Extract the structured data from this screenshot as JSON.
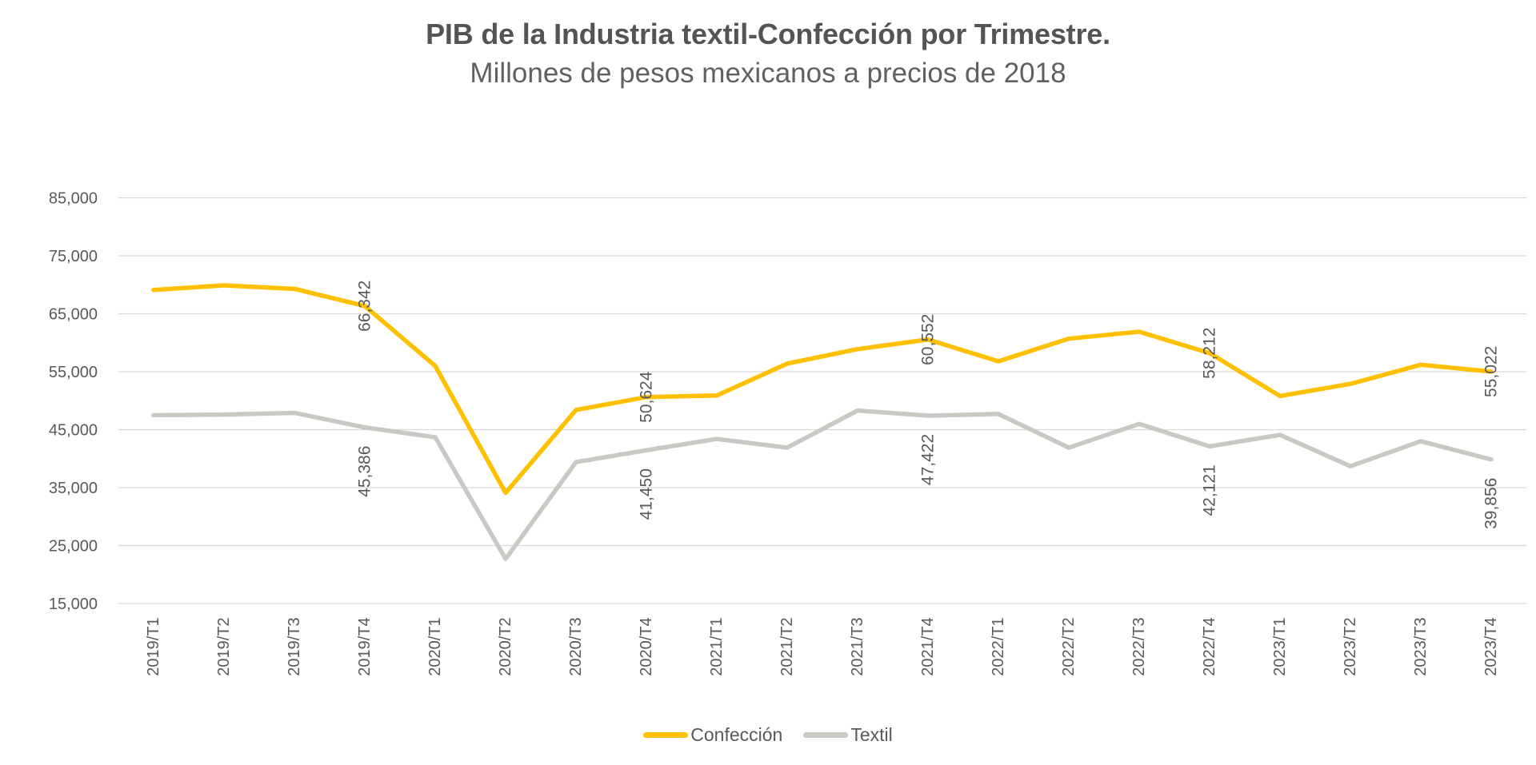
{
  "title": "PIB de la Industria textil-Confección por Trimestre.",
  "subtitle": "Millones de pesos mexicanos a precios de 2018",
  "colors": {
    "confeccion": "#FFC000",
    "textil": "#C9C8C3",
    "grid": "#D9D9D9",
    "axis_text": "#595959",
    "title_text": "#545454",
    "subtitle_text": "#606060",
    "background": "#FFFFFF"
  },
  "legend": {
    "items": [
      {
        "label": "Confección",
        "color": "#FFC000"
      },
      {
        "label": "Textil",
        "color": "#C9C8C3"
      }
    ]
  },
  "y_axis": {
    "tick_labels": [
      "85,000",
      "75,000",
      "65,000",
      "55,000",
      "45,000",
      "35,000",
      "25,000",
      "15,000"
    ],
    "min": 15000,
    "max": 85000,
    "step": 10000
  },
  "chart_data": {
    "type": "line",
    "title": "PIB de la Industria textil-Confección por Trimestre.",
    "subtitle": "Millones de pesos mexicanos a precios de 2018",
    "categories": [
      "2019/T1",
      "2019/T2",
      "2019/T3",
      "2019/T4",
      "2020/T1",
      "2020/T2",
      "2020/T3",
      "2020/T4",
      "2021/T1",
      "2021/T2",
      "2021/T3",
      "2021/T4",
      "2022/T1",
      "2022/T2",
      "2022/T3",
      "2022/T4",
      "2023/T1",
      "2023/T2",
      "2023/T3",
      "2023/T4"
    ],
    "ylim": [
      15000,
      85000
    ],
    "grid": true,
    "legend_position": "bottom",
    "x_tick_rotation_deg": -90,
    "data_label_rotation_deg": -90,
    "series": [
      {
        "name": "Confección",
        "color": "#FFC000",
        "values": [
          69100,
          69900,
          69300,
          66342,
          56000,
          34100,
          48400,
          50624,
          50900,
          56400,
          58900,
          60552,
          56800,
          60700,
          61900,
          58212,
          50800,
          52900,
          56200,
          55022
        ],
        "point_labels": [
          {
            "index": 3,
            "text": "66,342"
          },
          {
            "index": 7,
            "text": "50,624"
          },
          {
            "index": 11,
            "text": "60,552"
          },
          {
            "index": 15,
            "text": "58,212"
          },
          {
            "index": 19,
            "text": "55,022"
          }
        ],
        "label_offset_y": 0
      },
      {
        "name": "Textil",
        "color": "#C9C8C3",
        "values": [
          47500,
          47600,
          47900,
          45386,
          43700,
          22700,
          39400,
          41450,
          43400,
          41900,
          48300,
          47422,
          47700,
          41900,
          46000,
          42121,
          44100,
          38700,
          43000,
          39856
        ],
        "point_labels": [
          {
            "index": 3,
            "text": "45,386"
          },
          {
            "index": 7,
            "text": "41,450"
          },
          {
            "index": 11,
            "text": "47,422"
          },
          {
            "index": 15,
            "text": "42,121"
          },
          {
            "index": 19,
            "text": "39,856"
          }
        ],
        "label_offset_y": 55
      }
    ]
  }
}
